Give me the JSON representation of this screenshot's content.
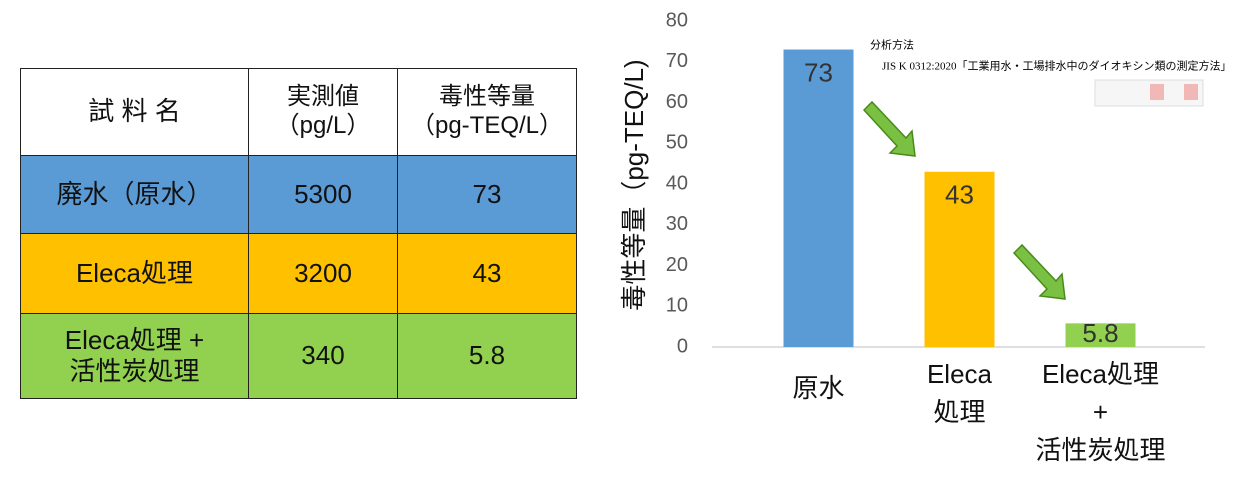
{
  "table": {
    "header": [
      "試 料 名",
      "実測値\n（pg/L）",
      "毒性等量\n（pg-TEQ/L）"
    ],
    "rows": [
      [
        "廃水（原水）",
        "5300",
        "73"
      ],
      [
        "Eleca処理",
        "3200",
        "43"
      ],
      [
        "Eleca処理 +\n活性炭処理",
        "340",
        "5.8"
      ]
    ],
    "row_colors": [
      "#5b9bd5",
      "#ffc000",
      "#92d050"
    ]
  },
  "chart_data": {
    "type": "bar",
    "y_label": "毒性等量（pg-TEQ/L)",
    "categories": [
      "原水",
      "Eleca\n処理",
      "Eleca処理\n+\n活性炭処理"
    ],
    "values": [
      73,
      43,
      5.8
    ],
    "colors": [
      "#5b9bd5",
      "#ffc000",
      "#92d050"
    ],
    "ylim": [
      0,
      80
    ],
    "yticks": [
      0,
      10,
      20,
      30,
      40,
      50,
      60,
      70,
      80
    ],
    "grid": false,
    "annotations": [
      "分析方法",
      "JIS K 0312:2020「工業用水・工場排水中のダイオキシン類の測定方法」"
    ]
  }
}
